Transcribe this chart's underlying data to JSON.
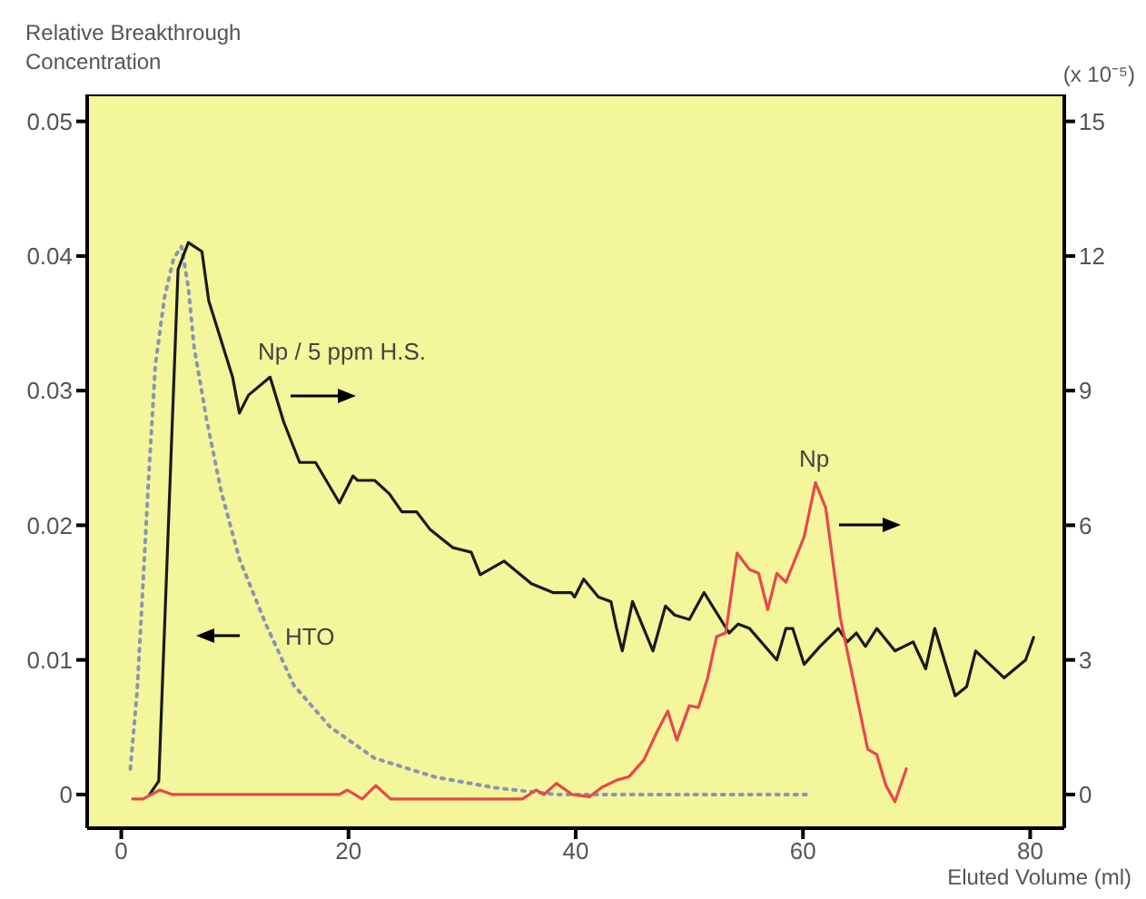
{
  "chart_data": {
    "type": "line",
    "xlabel": "Eluted Volume (ml)",
    "ylabel": "Relative Breakthrough Concentration",
    "y2label": "(x 10⁻⁵)",
    "xlim": [
      -3,
      83
    ],
    "xticks": [
      0,
      20,
      40,
      60,
      80
    ],
    "ylim": [
      -0.0025,
      0.052
    ],
    "yticks": [
      0,
      0.01,
      0.02,
      0.03,
      0.04,
      0.05
    ],
    "y2lim": [
      -0.75,
      15.6
    ],
    "y2ticks": [
      0,
      3,
      6,
      9,
      12,
      15
    ],
    "grid": false,
    "marker": "none",
    "series": [
      {
        "name": "HTO",
        "color": "#8a94b4",
        "line_style": "dotted",
        "x": [
          0.8,
          1.4,
          1.9,
          2.4,
          3.0,
          3.8,
          4.6,
          5.3,
          5.9,
          6.4,
          7.5,
          8.8,
          10.4,
          12.7,
          15.2,
          18.4,
          22.3,
          27.6,
          32.9,
          38.3,
          45,
          52,
          60.3
        ],
        "values": [
          0.0019,
          0.0077,
          0.0154,
          0.0234,
          0.0319,
          0.0369,
          0.0398,
          0.0407,
          0.0377,
          0.0333,
          0.0279,
          0.0225,
          0.0175,
          0.0127,
          0.0081,
          0.005,
          0.0027,
          0.0013,
          0.0005,
          0,
          0,
          0,
          0
        ]
      },
      {
        "name": "Np / 5 ppm  H.S.",
        "color": "#1a1a1a",
        "line_style": "solid",
        "axis": "y2",
        "x": [
          2.5,
          3.3,
          5.0,
          5.9,
          7.1,
          7.7,
          9.8,
          10.4,
          11.2,
          13.1,
          14.3,
          15.7,
          17.1,
          19.2,
          20.4,
          20.8,
          22.3,
          23.6,
          24.7,
          26.0,
          27.2,
          29.2,
          30.8,
          31.6,
          33.7,
          36.1,
          38.0,
          39.6,
          39.9,
          40.7,
          42.0,
          43.1,
          43.6,
          44.1,
          45.0,
          46.8,
          47.9,
          48.7,
          50.0,
          51.3,
          53.5,
          54.3,
          55.3,
          57.7,
          58.5,
          59.1,
          60.1,
          61.5,
          63.1,
          63.9,
          64.7,
          65.5,
          66.5,
          68.1,
          69.7,
          70.8,
          71.6,
          73.4,
          74.4,
          75.2,
          77.7,
          79.6,
          80.3
        ],
        "values": [
          0,
          0.3,
          11.7,
          12.3,
          12.1,
          11.0,
          9.3,
          8.5,
          8.9,
          9.3,
          8.3,
          7.4,
          7.4,
          6.5,
          7.1,
          7.0,
          7.0,
          6.7,
          6.3,
          6.3,
          5.9,
          5.5,
          5.4,
          4.9,
          5.2,
          4.7,
          4.5,
          4.5,
          4.4,
          4.8,
          4.4,
          4.3,
          3.7,
          3.2,
          4.3,
          3.2,
          4.2,
          4.0,
          3.9,
          4.5,
          3.6,
          3.8,
          3.7,
          3.0,
          3.7,
          3.7,
          2.9,
          3.3,
          3.7,
          3.4,
          3.6,
          3.3,
          3.7,
          3.2,
          3.4,
          2.8,
          3.7,
          2.2,
          2.4,
          3.2,
          2.6,
          3.0,
          3.5
        ]
      },
      {
        "name": "Np",
        "color": "#e8474f",
        "line_style": "solid",
        "axis": "y2",
        "x": [
          1,
          1.9,
          3.4,
          4.5,
          19.2,
          19.9,
          21.2,
          22.4,
          23.7,
          35.3,
          36.5,
          37.2,
          38.3,
          39.7,
          41.2,
          42.3,
          43.6,
          44.7,
          46,
          47.1,
          48.1,
          48.9,
          50,
          50.8,
          51.6,
          52.4,
          53.2,
          54.2,
          55.3,
          56.1,
          56.9,
          57.7,
          58.5,
          60.1,
          61.1,
          62,
          63.3,
          64.4,
          65.7,
          66.5,
          67.3,
          68.1,
          69.1
        ],
        "values": [
          -0.1,
          -0.1,
          0.1,
          0,
          0,
          0.1,
          -0.1,
          0.2,
          -0.1,
          -0.1,
          0.1,
          0,
          0.25,
          0,
          -0.05,
          0.16,
          0.32,
          0.4,
          0.77,
          1.37,
          1.86,
          1.21,
          1.98,
          1.94,
          2.59,
          3.52,
          3.6,
          5.38,
          5.01,
          4.93,
          4.12,
          4.93,
          4.73,
          5.74,
          6.95,
          6.39,
          3.92,
          2.59,
          1.01,
          0.89,
          0.2,
          -0.16,
          0.57
        ]
      }
    ]
  }
}
